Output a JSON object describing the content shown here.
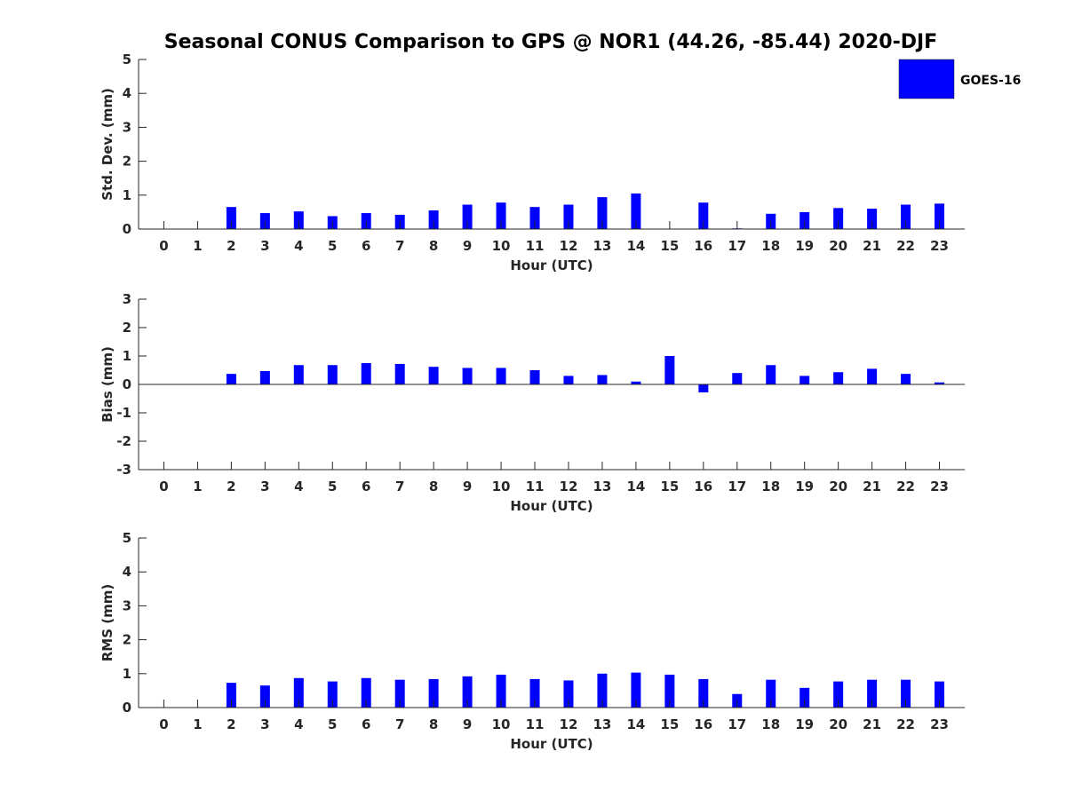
{
  "chart_data": {
    "type": "bar",
    "title": "Seasonal CONUS Comparison to GPS @ NOR1 (44.26, -85.44) 2020-DJF",
    "legend": {
      "placement": "top-right",
      "entries": [
        "GOES-16"
      ]
    },
    "colors": {
      "bar": "#0000ff",
      "axis": "#262626",
      "tick": "#262626"
    },
    "grid": false,
    "categories": [
      "0",
      "1",
      "2",
      "3",
      "4",
      "5",
      "6",
      "7",
      "8",
      "9",
      "10",
      "11",
      "12",
      "13",
      "14",
      "15",
      "16",
      "17",
      "18",
      "19",
      "20",
      "21",
      "22",
      "23"
    ],
    "panels": [
      {
        "ylabel": "Std. Dev. (mm)",
        "xlabel": "Hour (UTC)",
        "ylim": [
          0,
          5
        ],
        "yticks": [
          "0",
          "1",
          "2",
          "3",
          "4",
          "5"
        ],
        "series": [
          {
            "name": "GOES-16",
            "values": [
              null,
              null,
              0.65,
              0.47,
              0.52,
              0.38,
              0.47,
              0.42,
              0.55,
              0.72,
              0.78,
              0.65,
              0.72,
              0.94,
              1.05,
              null,
              0.78,
              0.02,
              0.45,
              0.5,
              0.62,
              0.6,
              0.72,
              0.75
            ]
          }
        ]
      },
      {
        "ylabel": "Bias (mm)",
        "xlabel": "Hour (UTC)",
        "ylim": [
          -3,
          3
        ],
        "yticks": [
          "-3",
          "-2",
          "-1",
          "0",
          "1",
          "2",
          "3"
        ],
        "series": [
          {
            "name": "GOES-16",
            "values": [
              null,
              null,
              0.37,
              0.47,
              0.68,
              0.68,
              0.75,
              0.72,
              0.62,
              0.58,
              0.58,
              0.5,
              0.3,
              0.33,
              0.1,
              1.0,
              -0.28,
              0.4,
              0.68,
              0.3,
              0.43,
              0.55,
              0.37,
              0.07
            ]
          }
        ]
      },
      {
        "ylabel": "RMS (mm)",
        "xlabel": "Hour (UTC)",
        "ylim": [
          0,
          5
        ],
        "yticks": [
          "0",
          "1",
          "2",
          "3",
          "4",
          "5"
        ],
        "series": [
          {
            "name": "GOES-16",
            "values": [
              null,
              null,
              0.73,
              0.65,
              0.87,
              0.77,
              0.87,
              0.82,
              0.84,
              0.92,
              0.97,
              0.84,
              0.8,
              1.0,
              1.03,
              0.97,
              0.84,
              0.4,
              0.82,
              0.58,
              0.77,
              0.82,
              0.82,
              0.77
            ]
          }
        ]
      }
    ]
  }
}
